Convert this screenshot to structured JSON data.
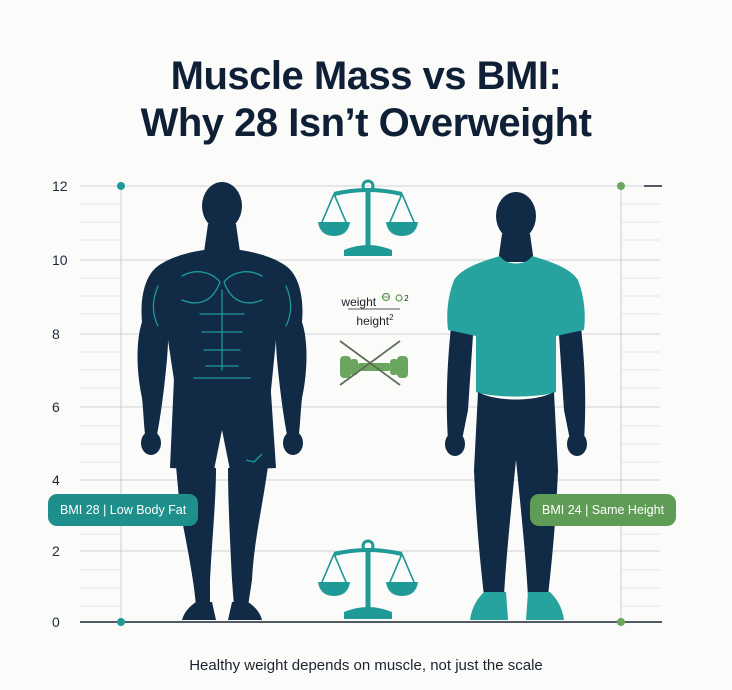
{
  "title": {
    "line1": "Muscle Mass vs BMI:",
    "line2": "Why 28 Isn’t Overweight"
  },
  "axis": {
    "ticks": [
      "12",
      "10",
      "8",
      "6",
      "4",
      "2",
      "0"
    ]
  },
  "formula": {
    "numerator": "weight",
    "exponent": "2",
    "denominator": "height"
  },
  "left_figure": {
    "badge": "BMI 28 | Low Body Fat"
  },
  "right_figure": {
    "badge": "BMI 24 | Same Height"
  },
  "caption": "Healthy weight depends on muscle, not just the scale",
  "colors": {
    "navy": "#112a45",
    "teal": "#1f9a96",
    "shirt": "#26a39e",
    "green": "#6aa65e",
    "grid": "#c9ced6"
  },
  "icons": [
    "balance-scale-icon",
    "dumbbell-icon",
    "cross-icon"
  ]
}
